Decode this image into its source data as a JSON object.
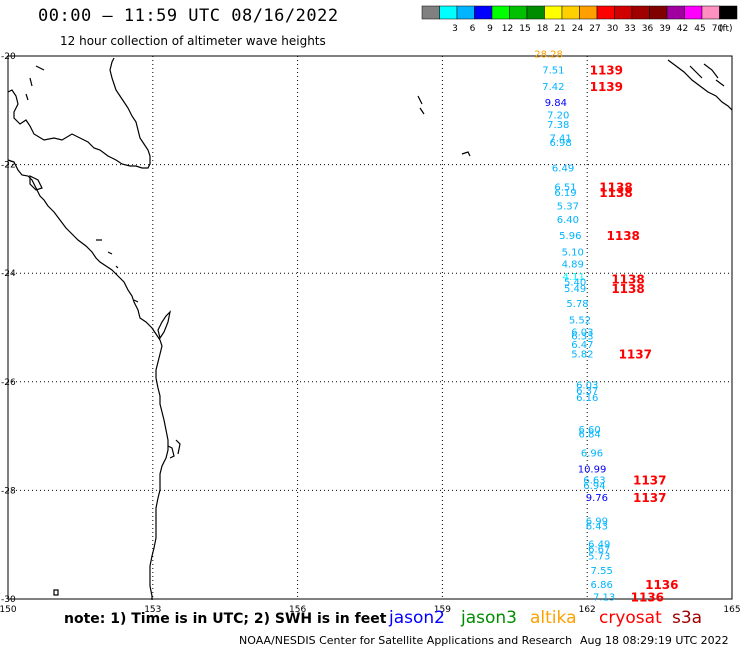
{
  "header": {
    "title": "00:00 — 11:59 UTC 08/16/2022",
    "subtitle": "12 hour collection of altimeter wave heights"
  },
  "legend": {
    "unit": "(ft)",
    "swatches": [
      {
        "color": "#808080",
        "label": ""
      },
      {
        "color": "#00ffff",
        "label": "3"
      },
      {
        "color": "#00b4ff",
        "label": "6"
      },
      {
        "color": "#0000ff",
        "label": "9"
      },
      {
        "color": "#00ff00",
        "label": "12"
      },
      {
        "color": "#00c000",
        "label": "15"
      },
      {
        "color": "#008c00",
        "label": "18"
      },
      {
        "color": "#ffff00",
        "label": "21"
      },
      {
        "color": "#ffd000",
        "label": "24"
      },
      {
        "color": "#ffa000",
        "label": "27"
      },
      {
        "color": "#ff0000",
        "label": "30"
      },
      {
        "color": "#d00000",
        "label": "33"
      },
      {
        "color": "#a00000",
        "label": "36"
      },
      {
        "color": "#800000",
        "label": "39"
      },
      {
        "color": "#a000a0",
        "label": "42"
      },
      {
        "color": "#ff00ff",
        "label": "45"
      },
      {
        "color": "#ff90c0",
        "label": "70"
      },
      {
        "color": "#000000",
        "label": ""
      }
    ]
  },
  "axes": {
    "lon_ticks": [
      {
        "value": 150,
        "label": "150"
      },
      {
        "value": 153,
        "label": "153"
      },
      {
        "value": 156,
        "label": "156"
      },
      {
        "value": 159,
        "label": "159"
      },
      {
        "value": 162,
        "label": "162"
      },
      {
        "value": 165,
        "label": "165"
      }
    ],
    "lat_ticks": [
      {
        "value": -20,
        "label": "-20"
      },
      {
        "value": -22,
        "label": "-22"
      },
      {
        "value": -24,
        "label": "-24"
      },
      {
        "value": -26,
        "label": "-26"
      },
      {
        "value": -28,
        "label": "-28"
      },
      {
        "value": -30,
        "label": "-30"
      }
    ]
  },
  "observations": [
    {
      "lon": 161.2,
      "lat": -19.95,
      "text": "28.28",
      "color": "#ffa000"
    },
    {
      "lon": 161.3,
      "lat": -20.25,
      "text": "7.51",
      "color": "#00b4ff"
    },
    {
      "lon": 161.3,
      "lat": -20.55,
      "text": "7.42",
      "color": "#00b4ff"
    },
    {
      "lon": 161.35,
      "lat": -20.85,
      "text": "9.84",
      "color": "#0000ff"
    },
    {
      "lon": 161.4,
      "lat": -21.08,
      "text": "7.20",
      "color": "#00b4ff"
    },
    {
      "lon": 161.4,
      "lat": -21.25,
      "text": "7.38",
      "color": "#00b4ff"
    },
    {
      "lon": 161.45,
      "lat": -21.5,
      "text": "7.41",
      "color": "#00b4ff"
    },
    {
      "lon": 161.45,
      "lat": -21.58,
      "text": "6.98",
      "color": "#00b4ff"
    },
    {
      "lon": 161.5,
      "lat": -22.05,
      "text": "6.49",
      "color": "#00b4ff"
    },
    {
      "lon": 161.55,
      "lat": -22.4,
      "text": "6.51",
      "color": "#00b4ff"
    },
    {
      "lon": 161.55,
      "lat": -22.5,
      "text": "6.19",
      "color": "#00b4ff"
    },
    {
      "lon": 161.6,
      "lat": -22.75,
      "text": "5.37",
      "color": "#00b4ff"
    },
    {
      "lon": 161.6,
      "lat": -23.0,
      "text": "6.40",
      "color": "#00b4ff"
    },
    {
      "lon": 161.65,
      "lat": -23.3,
      "text": "5.96",
      "color": "#00b4ff"
    },
    {
      "lon": 161.7,
      "lat": -23.6,
      "text": "5.10",
      "color": "#00b4ff"
    },
    {
      "lon": 161.7,
      "lat": -23.82,
      "text": "4.89",
      "color": "#00b4ff"
    },
    {
      "lon": 161.72,
      "lat": -24.05,
      "text": "4.11",
      "color": "#00ffff"
    },
    {
      "lon": 161.75,
      "lat": -24.15,
      "text": "5.40",
      "color": "#00b4ff"
    },
    {
      "lon": 161.75,
      "lat": -24.27,
      "text": "5.49",
      "color": "#00b4ff"
    },
    {
      "lon": 161.8,
      "lat": -24.55,
      "text": "5.78",
      "color": "#00b4ff"
    },
    {
      "lon": 161.85,
      "lat": -24.85,
      "text": "5.52",
      "color": "#00b4ff"
    },
    {
      "lon": 161.9,
      "lat": -25.07,
      "text": "6.03",
      "color": "#00b4ff"
    },
    {
      "lon": 161.9,
      "lat": -25.15,
      "text": "6.33",
      "color": "#00b4ff"
    },
    {
      "lon": 161.9,
      "lat": -25.3,
      "text": "6.47",
      "color": "#00b4ff"
    },
    {
      "lon": 161.9,
      "lat": -25.48,
      "text": "5.82",
      "color": "#00b4ff"
    },
    {
      "lon": 162.0,
      "lat": -26.05,
      "text": "6.03",
      "color": "#00b4ff"
    },
    {
      "lon": 162.0,
      "lat": -26.15,
      "text": "6.37",
      "color": "#00b4ff"
    },
    {
      "lon": 162.0,
      "lat": -26.28,
      "text": "6.16",
      "color": "#00b4ff"
    },
    {
      "lon": 162.05,
      "lat": -26.87,
      "text": "6.60",
      "color": "#00b4ff"
    },
    {
      "lon": 162.05,
      "lat": -26.95,
      "text": "6.84",
      "color": "#00b4ff"
    },
    {
      "lon": 162.1,
      "lat": -27.3,
      "text": "6.96",
      "color": "#00b4ff"
    },
    {
      "lon": 162.1,
      "lat": -27.6,
      "text": "10.99",
      "color": "#0000ff"
    },
    {
      "lon": 162.15,
      "lat": -27.8,
      "text": "6.63",
      "color": "#00b4ff"
    },
    {
      "lon": 162.15,
      "lat": -27.9,
      "text": "6.94",
      "color": "#00b4ff"
    },
    {
      "lon": 162.2,
      "lat": -28.12,
      "text": "9.76",
      "color": "#0000ff"
    },
    {
      "lon": 162.2,
      "lat": -28.55,
      "text": "6.99",
      "color": "#00b4ff"
    },
    {
      "lon": 162.2,
      "lat": -28.65,
      "text": "6.43",
      "color": "#00b4ff"
    },
    {
      "lon": 162.25,
      "lat": -28.98,
      "text": "6.49",
      "color": "#00b4ff"
    },
    {
      "lon": 162.25,
      "lat": -29.07,
      "text": "6.67",
      "color": "#00b4ff"
    },
    {
      "lon": 162.25,
      "lat": -29.2,
      "text": "5.73",
      "color": "#00b4ff"
    },
    {
      "lon": 162.3,
      "lat": -29.47,
      "text": "7.55",
      "color": "#00b4ff"
    },
    {
      "lon": 162.3,
      "lat": -29.72,
      "text": "6.86",
      "color": "#00b4ff"
    },
    {
      "lon": 162.35,
      "lat": -29.95,
      "text": "7.13",
      "color": "#00b4ff"
    }
  ],
  "pass_labels": [
    {
      "lon": 162.05,
      "lat": -20.25,
      "text": "1139",
      "color": "#ff0000"
    },
    {
      "lon": 162.05,
      "lat": -20.55,
      "text": "1139",
      "color": "#ff0000"
    },
    {
      "lon": 162.25,
      "lat": -22.4,
      "text": "1138",
      "color": "#ff0000"
    },
    {
      "lon": 162.25,
      "lat": -22.5,
      "text": "1138",
      "color": "#ff0000"
    },
    {
      "lon": 162.4,
      "lat": -23.3,
      "text": "1138",
      "color": "#ff0000"
    },
    {
      "lon": 162.5,
      "lat": -24.1,
      "text": "1138",
      "color": "#ff0000"
    },
    {
      "lon": 162.5,
      "lat": -24.27,
      "text": "1138",
      "color": "#ff0000"
    },
    {
      "lon": 162.65,
      "lat": -25.48,
      "text": "1137",
      "color": "#ff0000"
    },
    {
      "lon": 162.95,
      "lat": -27.8,
      "text": "1137",
      "color": "#ff0000"
    },
    {
      "lon": 162.95,
      "lat": -28.12,
      "text": "1137",
      "color": "#ff0000"
    },
    {
      "lon": 163.2,
      "lat": -29.72,
      "text": "1136",
      "color": "#ff0000"
    },
    {
      "lon": 162.9,
      "lat": -29.95,
      "text": "1136",
      "color": "#ff0000"
    }
  ],
  "footer": {
    "note": "note: 1) Time is in UTC; 2) SWH is in feet",
    "satellites": [
      {
        "name": "jason2",
        "color": "#0000ff"
      },
      {
        "name": "jason3",
        "color": "#008c00"
      },
      {
        "name": "altika",
        "color": "#ffa000"
      },
      {
        "name": "cryosat",
        "color": "#ff0000"
      },
      {
        "name": "s3a",
        "color": "#a00000"
      }
    ],
    "credit": "NOAA/NESDIS Center for Satellite Applications and Research",
    "generated": "Aug 18 08:29:19 UTC 2022"
  }
}
